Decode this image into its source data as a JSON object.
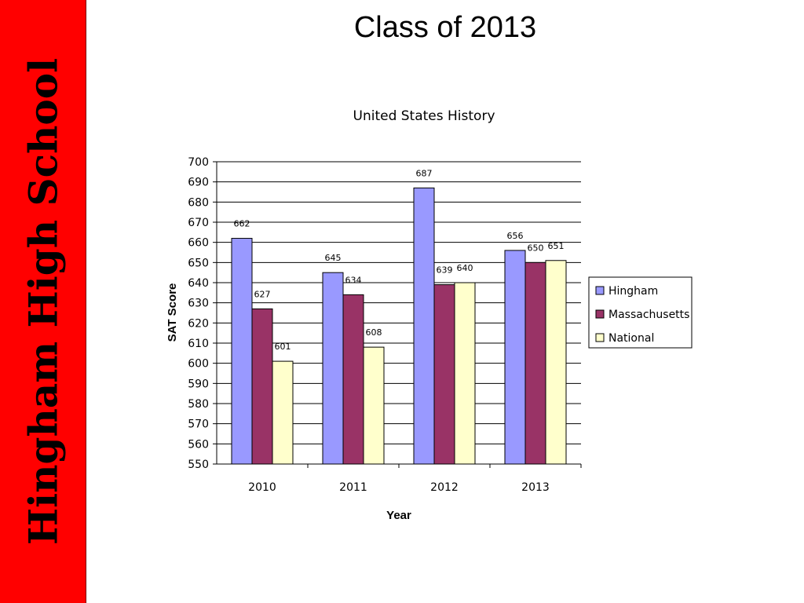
{
  "sidebar": {
    "text": "Hingham High School",
    "color": "#ff0000"
  },
  "slide": {
    "title": "Class of 2013"
  },
  "chart_data": {
    "type": "bar",
    "title": "United States History",
    "xlabel": "Year",
    "ylabel": "SAT Score",
    "categories": [
      "2010",
      "2011",
      "2012",
      "2013"
    ],
    "ylim": [
      550,
      700
    ],
    "ytick_step": 10,
    "grid": true,
    "legend_position": "right",
    "series": [
      {
        "name": "Hingham",
        "values": [
          662,
          645,
          687,
          656
        ],
        "color": "#9999ff"
      },
      {
        "name": "Massachusetts",
        "values": [
          627,
          634,
          639,
          650
        ],
        "color": "#993366"
      },
      {
        "name": "National",
        "values": [
          601,
          608,
          640,
          651
        ],
        "color": "#ffffcc"
      }
    ]
  }
}
